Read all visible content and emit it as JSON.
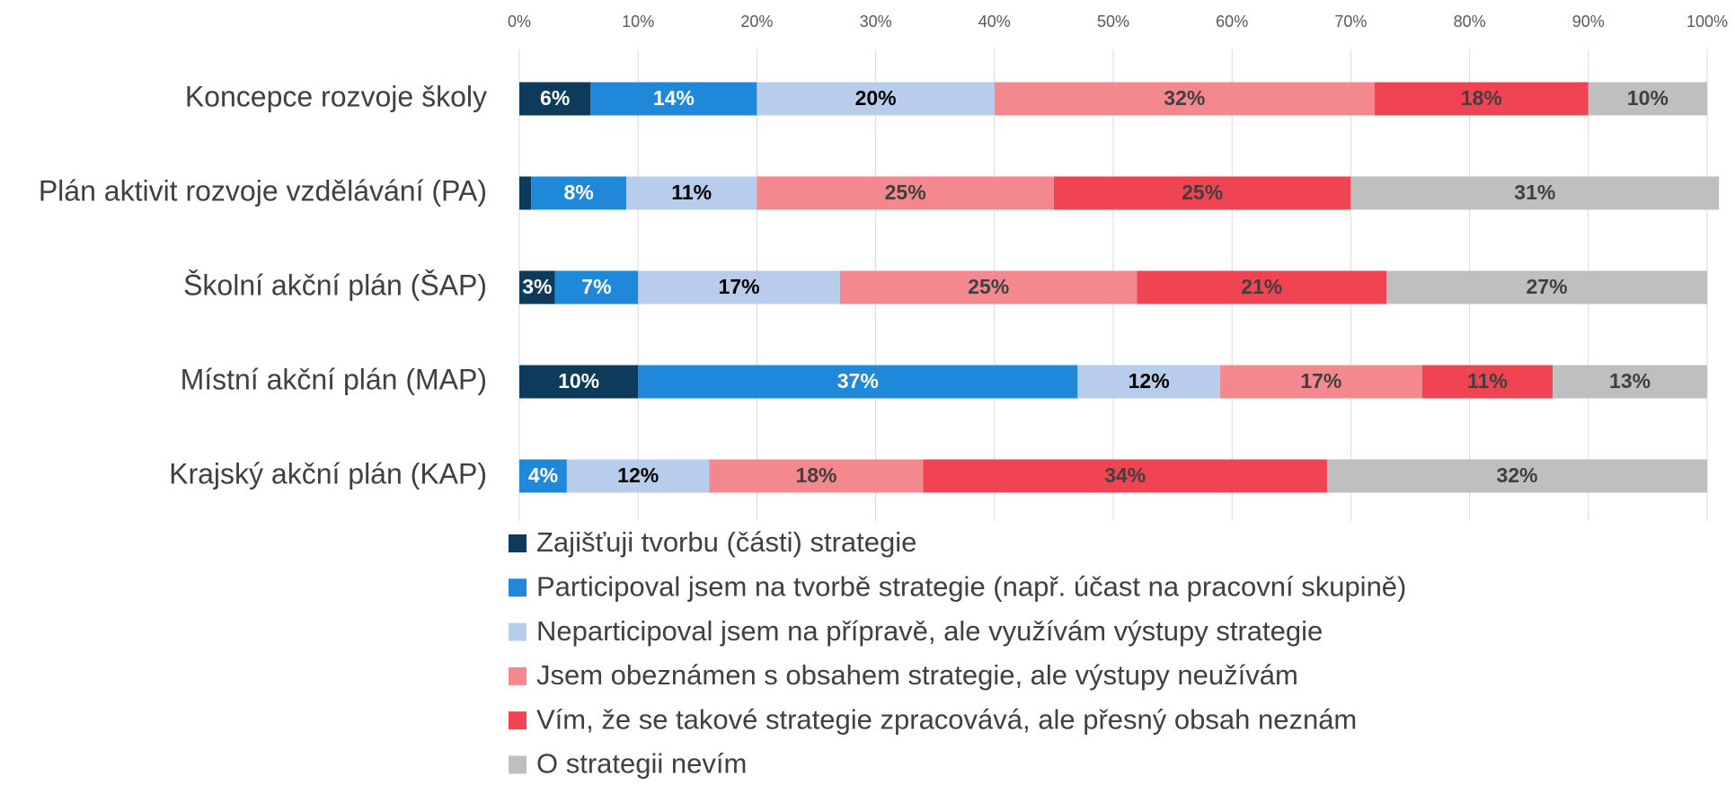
{
  "chart_data": {
    "type": "stacked_bar_horizontal",
    "categories": [
      "Koncepce rozvoje školy",
      "Plán aktivit rozvoje vzdělávání (PA)",
      "Školní akční plán (ŠAP)",
      "Místní akční plán (MAP)",
      "Krajský akční plán (KAP)"
    ],
    "series": [
      {
        "name": "Zajišťuji tvorbu (části) strategie",
        "color": "#0e3a5c",
        "label_color": "#ffffff",
        "values": [
          6,
          1,
          3,
          10,
          0
        ],
        "value_labels": [
          "6%",
          null,
          "3%",
          "10%",
          null
        ]
      },
      {
        "name": "Participoval jsem na tvorbě strategie (např. účast na pracovní skupině)",
        "color": "#1f88d9",
        "label_color": "#ffffff",
        "values": [
          14,
          8,
          7,
          37,
          4
        ],
        "value_labels": [
          "14%",
          "8%",
          "7%",
          "37%",
          "4%"
        ]
      },
      {
        "name": "Neparticipoval jsem na přípravě, ale využívám výstupy strategie",
        "color": "#b8cdec",
        "label_color": "#000000",
        "values": [
          20,
          11,
          17,
          12,
          12
        ],
        "value_labels": [
          "20%",
          "11%",
          "17%",
          "12%",
          "12%"
        ]
      },
      {
        "name": "Jsem obeznámen s obsahem strategie, ale výstupy neužívám",
        "color": "#f4888f",
        "label_color": "#404040",
        "values": [
          32,
          25,
          25,
          17,
          18
        ],
        "value_labels": [
          "32%",
          "25%",
          "25%",
          "17%",
          "18%"
        ]
      },
      {
        "name": "Vím, že se takové strategie zpracovává, ale přesný obsah neznám",
        "color": "#f04452",
        "label_color": "#404040",
        "values": [
          18,
          25,
          21,
          11,
          34
        ],
        "value_labels": [
          "18%",
          "25%",
          "21%",
          "11%",
          "34%"
        ]
      },
      {
        "name": "O strategii nevím",
        "color": "#bfbfbf",
        "label_color": "#404040",
        "values": [
          10,
          31,
          27,
          13,
          32
        ],
        "value_labels": [
          "10%",
          "31%",
          "27%",
          "13%",
          "32%"
        ]
      }
    ],
    "xlim": [
      0,
      100
    ],
    "xticks": [
      {
        "value": 0,
        "label": "0%"
      },
      {
        "value": 10,
        "label": "10%"
      },
      {
        "value": 20,
        "label": "20%"
      },
      {
        "value": 30,
        "label": "30%"
      },
      {
        "value": 40,
        "label": "40%"
      },
      {
        "value": 50,
        "label": "50%"
      },
      {
        "value": 60,
        "label": "60%"
      },
      {
        "value": 70,
        "label": "70%"
      },
      {
        "value": 80,
        "label": "80%"
      },
      {
        "value": 90,
        "label": "90%"
      },
      {
        "value": 100,
        "label": "100%"
      }
    ],
    "grid": true,
    "legend": "bottom"
  }
}
